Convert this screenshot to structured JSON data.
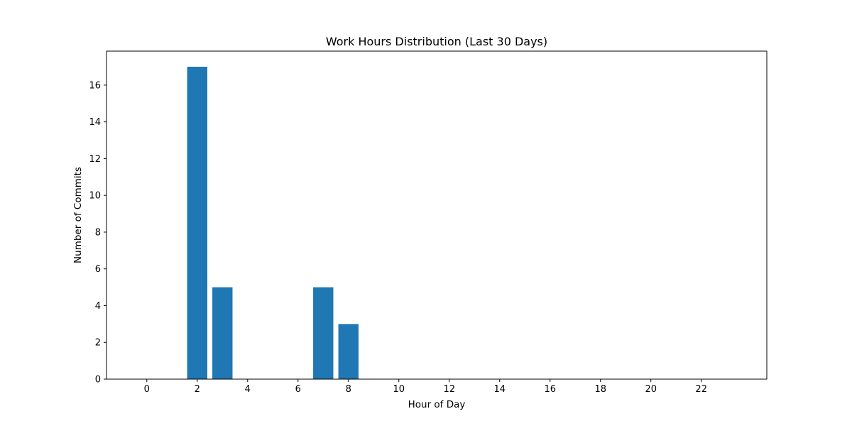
{
  "chart_data": {
    "type": "bar",
    "title": "Work Hours Distribution (Last 30 Days)",
    "xlabel": "Hour of Day",
    "ylabel": "Number of Commits",
    "x": [
      0,
      1,
      2,
      3,
      4,
      5,
      6,
      7,
      8,
      9,
      10,
      11,
      12,
      13,
      14,
      15,
      16,
      17,
      18,
      19,
      20,
      21,
      22,
      23
    ],
    "values": [
      0,
      0,
      17,
      5,
      0,
      0,
      0,
      5,
      3,
      0,
      0,
      0,
      0,
      0,
      0,
      0,
      0,
      0,
      0,
      0,
      0,
      0,
      0,
      0
    ],
    "xticks": [
      0,
      2,
      4,
      6,
      8,
      10,
      12,
      14,
      16,
      18,
      20,
      22
    ],
    "yticks": [
      0,
      2,
      4,
      6,
      8,
      10,
      12,
      14,
      16
    ],
    "xlim": [
      -1.6,
      24.6
    ],
    "ylim": [
      0,
      17
    ],
    "grid": false,
    "bar_color": "#1f77b4"
  }
}
